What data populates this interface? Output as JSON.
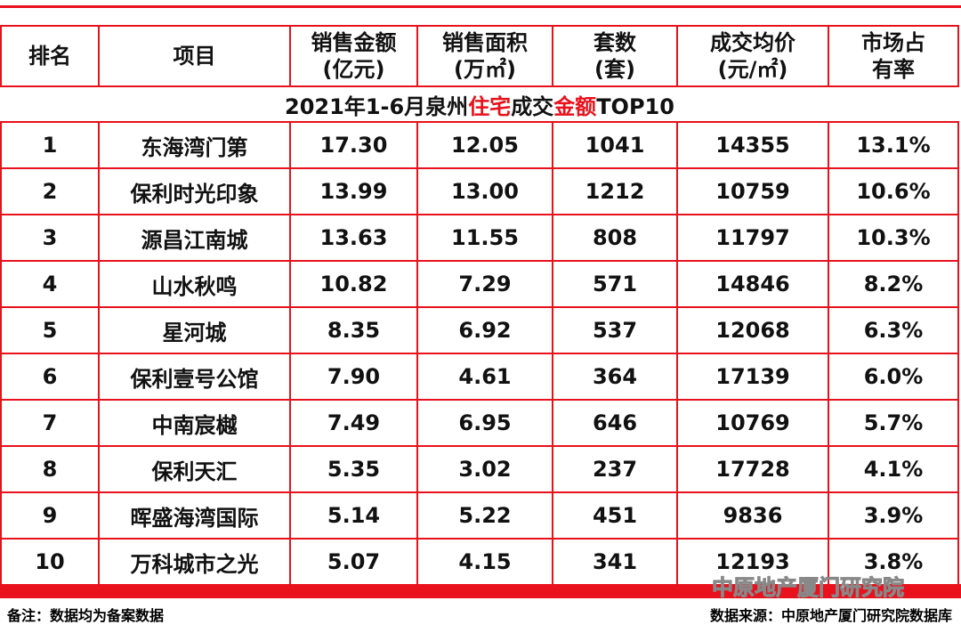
{
  "title": [
    "2021年1-6月泉州",
    "住宅",
    "成交",
    "金额",
    "TOP10"
  ],
  "header": [
    [
      "排名"
    ],
    [
      "项目"
    ],
    [
      "销售金额",
      "(亿元)"
    ],
    [
      "销售面积",
      "(万㎡)"
    ],
    [
      "套数",
      "(套)"
    ],
    [
      "成交均价",
      "(元/㎡)"
    ],
    [
      "市场占",
      "有率"
    ]
  ],
  "rows": [
    [
      "1",
      "东海湾门第",
      "17.30",
      "12.05",
      "1041",
      "14355",
      "13.1%"
    ],
    [
      "2",
      "保利时光印象",
      "13.99",
      "13.00",
      "1212",
      "10759",
      "10.6%"
    ],
    [
      "3",
      "源昌江南城",
      "13.63",
      "11.55",
      "808",
      "11797",
      "10.3%"
    ],
    [
      "4",
      "山水秋鸣",
      "10.82",
      "7.29",
      "571",
      "14846",
      "8.2%"
    ],
    [
      "5",
      "星河城",
      "8.35",
      "6.92",
      "537",
      "12068",
      "6.3%"
    ],
    [
      "6",
      "保利壹号公馆",
      "7.90",
      "4.61",
      "364",
      "17139",
      "6.0%"
    ],
    [
      "7",
      "中南宸樾",
      "7.49",
      "6.95",
      "646",
      "10769",
      "5.7%"
    ],
    [
      "8",
      "保利天汇",
      "5.35",
      "3.02",
      "237",
      "17728",
      "4.1%"
    ],
    [
      "9",
      "晖盛海湾国际",
      "5.14",
      "5.22",
      "451",
      "9836",
      "3.9%"
    ],
    [
      "10",
      "万科城市之光",
      "5.07",
      "4.15",
      "341",
      "12193",
      "3.8%"
    ]
  ],
  "watermark": "中原地产厦门研究院",
  "note": "备注：数据均为备案数据",
  "source": "数据来源：中原地产厦门研究院数据库"
}
